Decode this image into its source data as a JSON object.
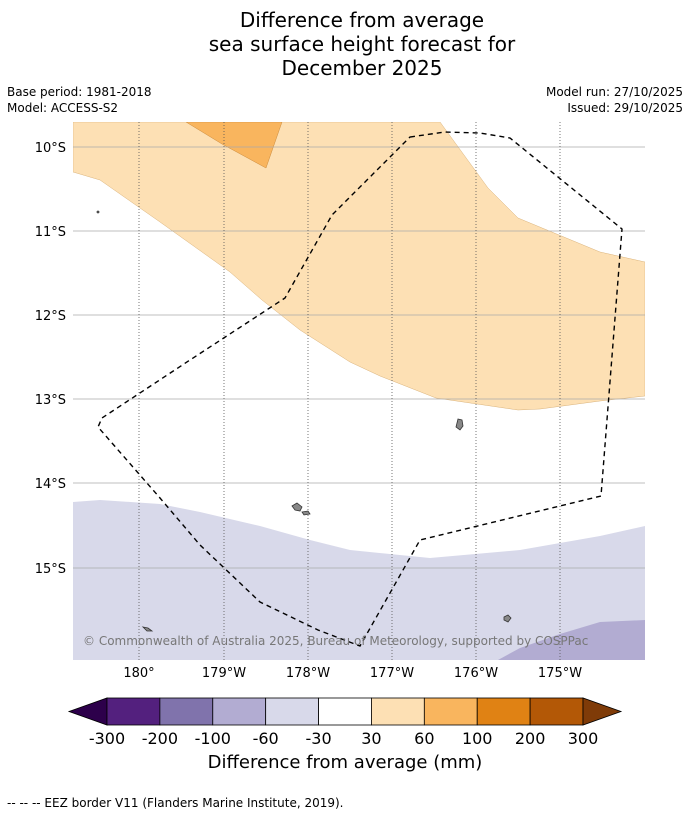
{
  "title": {
    "line1": "Difference from average",
    "line2": "sea surface height forecast for",
    "line3": "December 2025"
  },
  "meta": {
    "base_period": "Base period: 1981-2018",
    "model": "Model: ACCESS-S2",
    "model_run": "Model run: 27/10/2025",
    "issued": "Issued: 29/10/2025"
  },
  "map": {
    "lat_labels": [
      "10°S",
      "11°S",
      "12°S",
      "13°S",
      "14°S",
      "15°S"
    ],
    "lon_labels": [
      "180°",
      "179°W",
      "178°W",
      "177°W",
      "176°W",
      "175°W"
    ],
    "copyright": "© Commonwealth of Australia 2025, Bureau of Meteorology, supported by COSPPac",
    "colors": {
      "band_30_60": "#fde0b4",
      "band_60_100": "#f9b55e",
      "band_m60_m30": "#d8d9ea",
      "band_m100_m60": "#b2acd2",
      "grid": "#aaaaaa",
      "land": "#888888"
    }
  },
  "colorbar": {
    "ticks": [
      "-300",
      "-200",
      "-100",
      "-60",
      "-30",
      "30",
      "60",
      "100",
      "200",
      "300"
    ],
    "colors": [
      "#53207e",
      "#8073ac",
      "#b2acd2",
      "#d8d9ea",
      "#ffffff",
      "#fde0b4",
      "#f9b55e",
      "#e08214",
      "#b35806"
    ],
    "under_color": "#2d004b",
    "over_color": "#7f3b08",
    "label": "Difference from average (mm)"
  },
  "footnote": "--  --  -- EEZ border V11 (Flanders Marine Institute, 2019)."
}
